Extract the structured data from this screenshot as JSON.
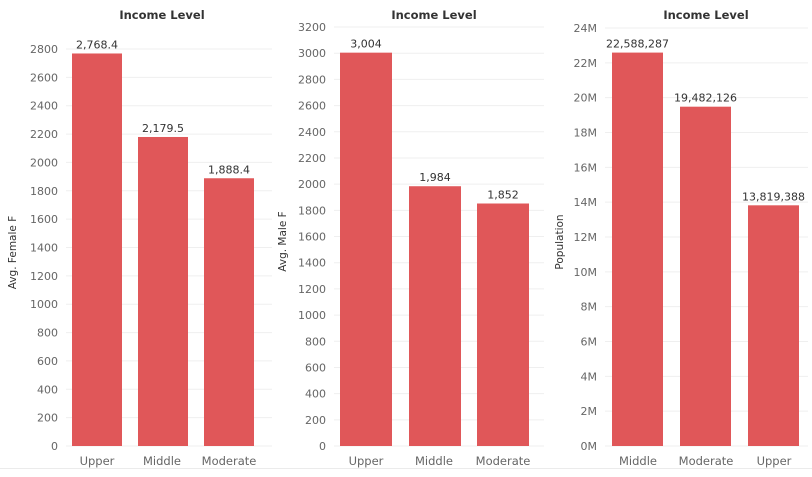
{
  "chart_data": [
    {
      "type": "bar",
      "title": "Income Level",
      "ylabel": "Avg. Female F",
      "categories": [
        "Upper",
        "Middle",
        "Moderate"
      ],
      "values": [
        2768.4,
        2179.5,
        1888.4
      ],
      "value_labels": [
        "2,768.4",
        "2,179.5",
        "1,888.4"
      ],
      "yticks": [
        0,
        200,
        400,
        600,
        800,
        1000,
        1200,
        1400,
        1600,
        1800,
        2000,
        2200,
        2400,
        2600,
        2800
      ],
      "ytick_labels": [
        "0",
        "200",
        "400",
        "600",
        "800",
        "1000",
        "1200",
        "1400",
        "1600",
        "1800",
        "2000",
        "2200",
        "2400",
        "2600",
        "2800"
      ],
      "ylim": [
        0,
        2900
      ],
      "grid": true,
      "color": "#e05759"
    },
    {
      "type": "bar",
      "title": "Income Level",
      "ylabel": "Avg. Male F",
      "categories": [
        "Upper",
        "Middle",
        "Moderate"
      ],
      "values": [
        3004,
        1984,
        1852
      ],
      "value_labels": [
        "3,004",
        "1,984",
        "1,852"
      ],
      "yticks": [
        0,
        200,
        400,
        600,
        800,
        1000,
        1200,
        1400,
        1600,
        1800,
        2000,
        2200,
        2400,
        2600,
        2800,
        3000,
        3200
      ],
      "ytick_labels": [
        "0",
        "200",
        "400",
        "600",
        "800",
        "1000",
        "1200",
        "1400",
        "1600",
        "1800",
        "2000",
        "2200",
        "2400",
        "2600",
        "2800",
        "3000",
        "3200"
      ],
      "ylim": [
        0,
        3200
      ],
      "grid": true,
      "color": "#e05759"
    },
    {
      "type": "bar",
      "title": "Income Level",
      "ylabel": "Population",
      "categories": [
        "Middle",
        "Moderate",
        "Upper"
      ],
      "values": [
        22588287,
        19482126,
        13819388
      ],
      "value_labels": [
        "22,588,287",
        "19,482,126",
        "13,819,388"
      ],
      "yticks": [
        0,
        2000000,
        4000000,
        6000000,
        8000000,
        10000000,
        12000000,
        14000000,
        16000000,
        18000000,
        20000000,
        22000000,
        24000000
      ],
      "ytick_labels": [
        "0M",
        "2M",
        "4M",
        "6M",
        "8M",
        "10M",
        "12M",
        "14M",
        "16M",
        "18M",
        "20M",
        "22M",
        "24M"
      ],
      "ylim": [
        0,
        24000000
      ],
      "grid": true,
      "color": "#e05759"
    }
  ]
}
